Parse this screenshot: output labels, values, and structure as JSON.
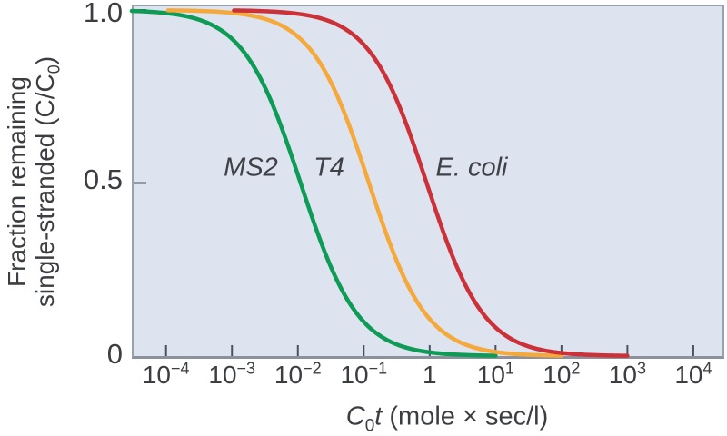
{
  "colors": {
    "plot_background": "#dee3f0",
    "plot_border": "#99a1af",
    "axis_line": "#8b929e",
    "tick": "#4a5160",
    "text": "#3b3d43",
    "ms2_green": "#0d9b55",
    "t4_orange": "#f6a93b",
    "ecoli_red": "#cd3138"
  },
  "ylabel": {
    "line1": "Fraction remaining",
    "line2_pre": "single-stranded (C/C",
    "line2_sub": "0",
    "line2_post": ")"
  },
  "xlabel": {
    "c": "C",
    "sub": "0",
    "t": "t",
    "rest": " (mole × sec/l)"
  },
  "chart_data": {
    "type": "line",
    "title": "",
    "xlabel": "C0t (mole × sec/l)",
    "ylabel": "Fraction remaining single-stranded (C/C0)",
    "x_scale": "log10",
    "xlim_log": [
      -4.52,
      4.47
    ],
    "ylim": [
      0,
      1
    ],
    "grid": false,
    "legend": "inline-curve-labels",
    "x_ticks": [
      {
        "base": "10",
        "exp": "−4",
        "log": -4
      },
      {
        "base": "10",
        "exp": "−3",
        "log": -3
      },
      {
        "base": "10",
        "exp": "−2",
        "log": -2
      },
      {
        "base": "10",
        "exp": "−1",
        "log": -1
      },
      {
        "base": "1",
        "exp": "",
        "log": 0
      },
      {
        "base": "10",
        "exp": "1",
        "log": 1
      },
      {
        "base": "10",
        "exp": "2",
        "log": 2
      },
      {
        "base": "10",
        "exp": "3",
        "log": 3
      },
      {
        "base": "10",
        "exp": "4",
        "log": 4
      }
    ],
    "y_ticks": [
      {
        "label": "1.0",
        "value": 1
      },
      {
        "label": "0.5",
        "value": 0.5
      },
      {
        "label": "0",
        "value": 0
      }
    ],
    "model": "second-order reassociation: f = 1 / (1 + C0t / cot_half)",
    "series": [
      {
        "name": "MS2",
        "color": "#0d9b55",
        "cot_half": 0.011,
        "log_start": -4.52,
        "log_end": 1.0
      },
      {
        "name": "T4",
        "color": "#f6a93b",
        "cot_half": 0.12,
        "log_start": -3.97,
        "log_end": 2.0
      },
      {
        "name": "E. coli",
        "color": "#cd3138",
        "cot_half": 0.9,
        "log_start": -2.97,
        "log_end": 3.0
      }
    ]
  }
}
